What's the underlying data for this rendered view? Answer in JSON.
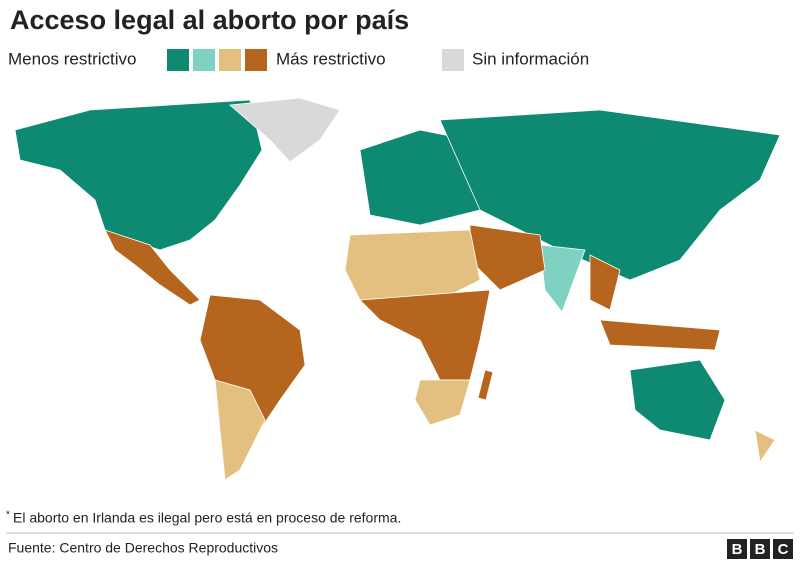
{
  "title": "Acceso legal al aborto por país",
  "legend": {
    "low_label": "Menos restrictivo",
    "high_label": "Más restrictivo",
    "scale_colors": [
      "#0e8a73",
      "#7fd1c1",
      "#e3c07f",
      "#b5651d"
    ],
    "no_info": {
      "label": "Sin información",
      "color": "#d9d9d9"
    }
  },
  "footnote": {
    "mark": "*",
    "text": "El aborto en Irlanda es ilegal pero está en proceso de reforma."
  },
  "source": "Fuente: Centro de Derechos Reproductivos",
  "logo": [
    "B",
    "B",
    "C"
  ]
}
